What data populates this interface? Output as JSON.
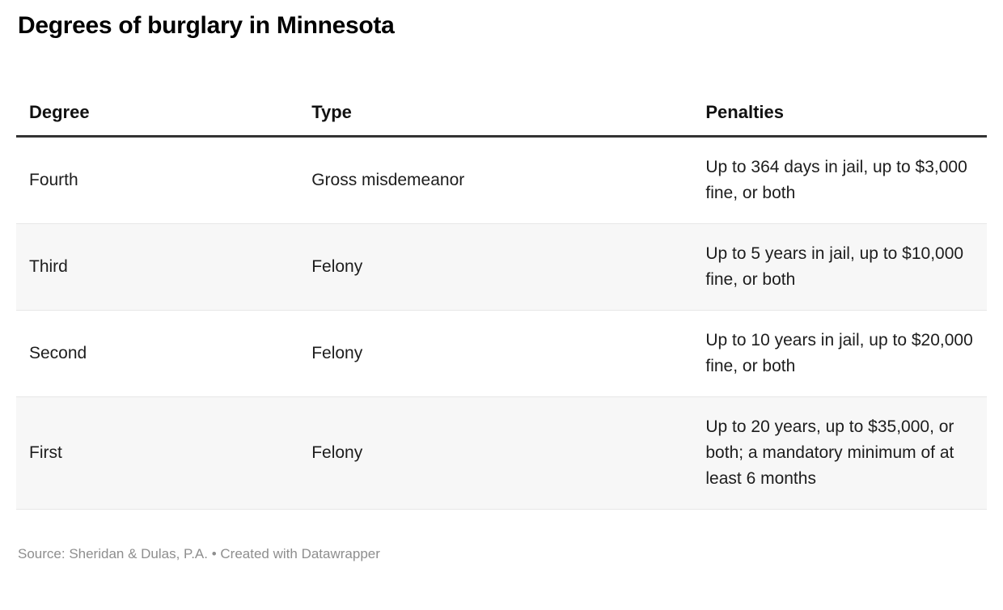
{
  "title": "Degrees of burglary in Minnesota",
  "chart_data": {
    "type": "table",
    "title": "Degrees of burglary in Minnesota",
    "columns": [
      "Degree",
      "Type",
      "Penalties"
    ],
    "rows": [
      {
        "degree": "Fourth",
        "type": "Gross misdemeanor",
        "penalties": "Up to 364 days in jail, up to $3,000 fine, or both"
      },
      {
        "degree": "Third",
        "type": "Felony",
        "penalties": "Up to 5 years in jail, up to $10,000 fine, or both"
      },
      {
        "degree": "Second",
        "type": "Felony",
        "penalties": "Up to 10 years in jail, up to $20,000 fine, or both"
      },
      {
        "degree": "First",
        "type": "Felony",
        "penalties": "Up to 20 years, up to $35,000, or both; a mandatory minimum of at least 6 months"
      }
    ],
    "layout_hints": {
      "zebra_striping": true,
      "striped_row_indices": [
        1,
        3
      ],
      "header_rule": "3px solid dark",
      "row_divider": "1px light gray"
    }
  },
  "footer": {
    "source_label": "Source: ",
    "source_name": "Sheridan & Dulas, P.A.",
    "separator": " • ",
    "credit": "Created with Datawrapper"
  },
  "colors": {
    "title_text": "#000000",
    "header_text": "#111111",
    "body_text": "#1d1d1d",
    "footer_text": "#8e8e8e",
    "stripe_background": "#f7f7f7",
    "header_rule": "#333333",
    "row_divider": "#e7e7e7",
    "page_background": "#ffffff"
  }
}
